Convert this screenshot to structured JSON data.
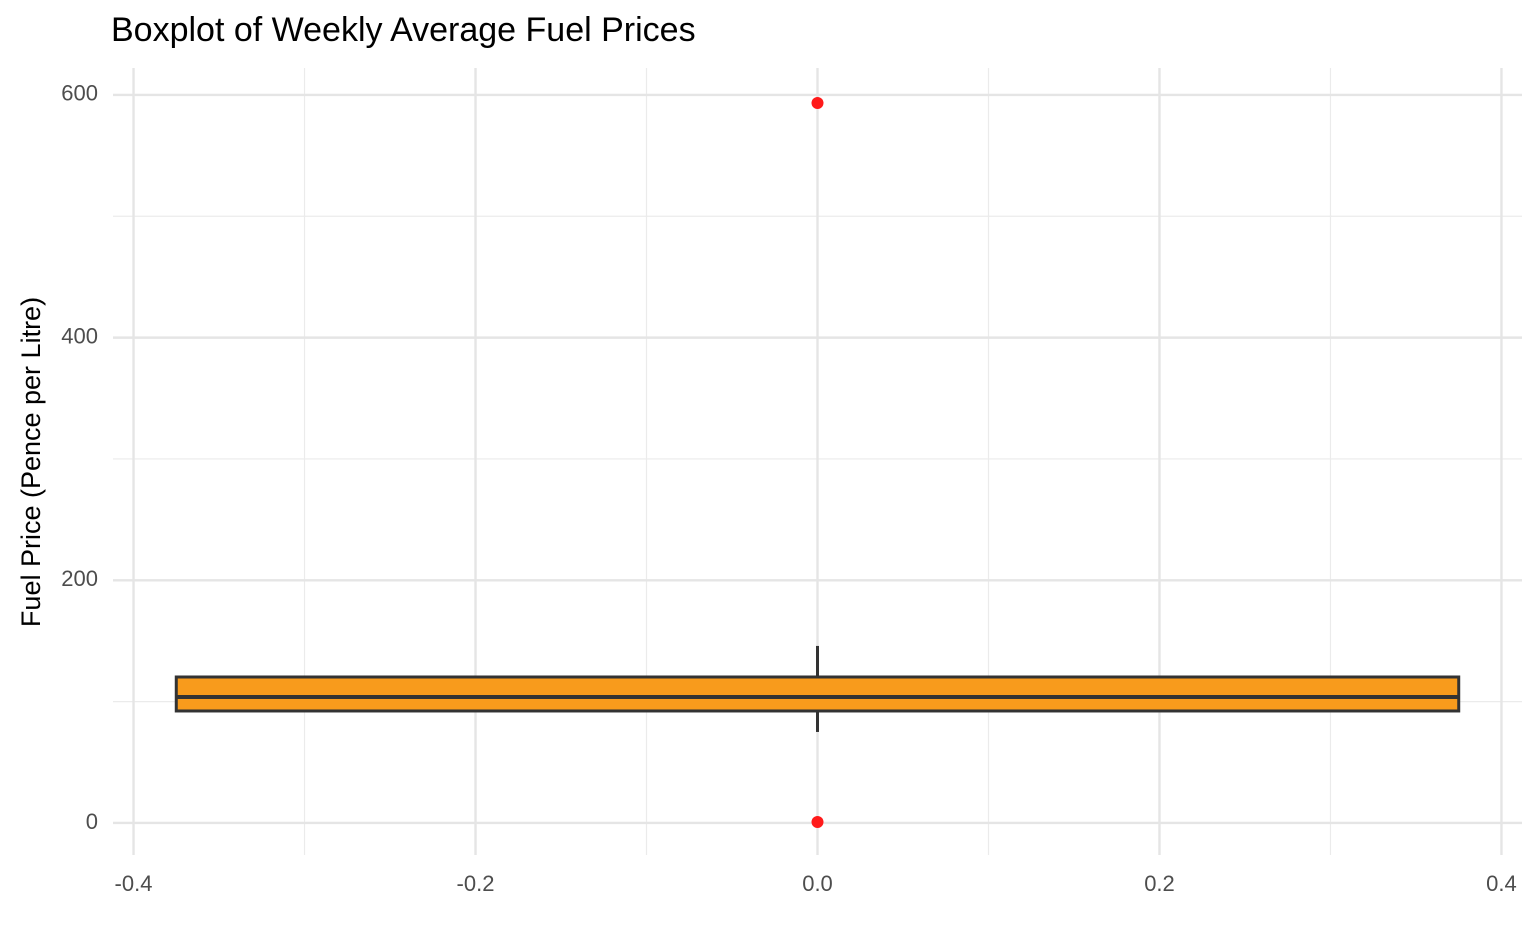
{
  "chart_data": {
    "type": "box",
    "title": "Boxplot of Weekly Average Fuel Prices",
    "y_label": "Fuel Price (Pence per Litre)",
    "series": [
      {
        "x": 0,
        "width": 0.75,
        "color": "#f89b1c",
        "edge_color": "#333333",
        "whislo": 75,
        "q1": 92.3,
        "med": 103.8,
        "q3": 120.3,
        "whishi": 145.9,
        "fliers": [
          593.4,
          0.8
        ],
        "flier_color": "#ff1a1a"
      }
    ],
    "xlim": [
      -0.412,
      0.412
    ],
    "xticks": [
      -0.4,
      -0.2,
      {
        "value": 0,
        "label": "0.0"
      },
      0.2,
      0.4
    ],
    "ylim": [
      -26.4,
      622.2
    ],
    "yticks": [
      0,
      200,
      400,
      600
    ],
    "grid": true
  }
}
